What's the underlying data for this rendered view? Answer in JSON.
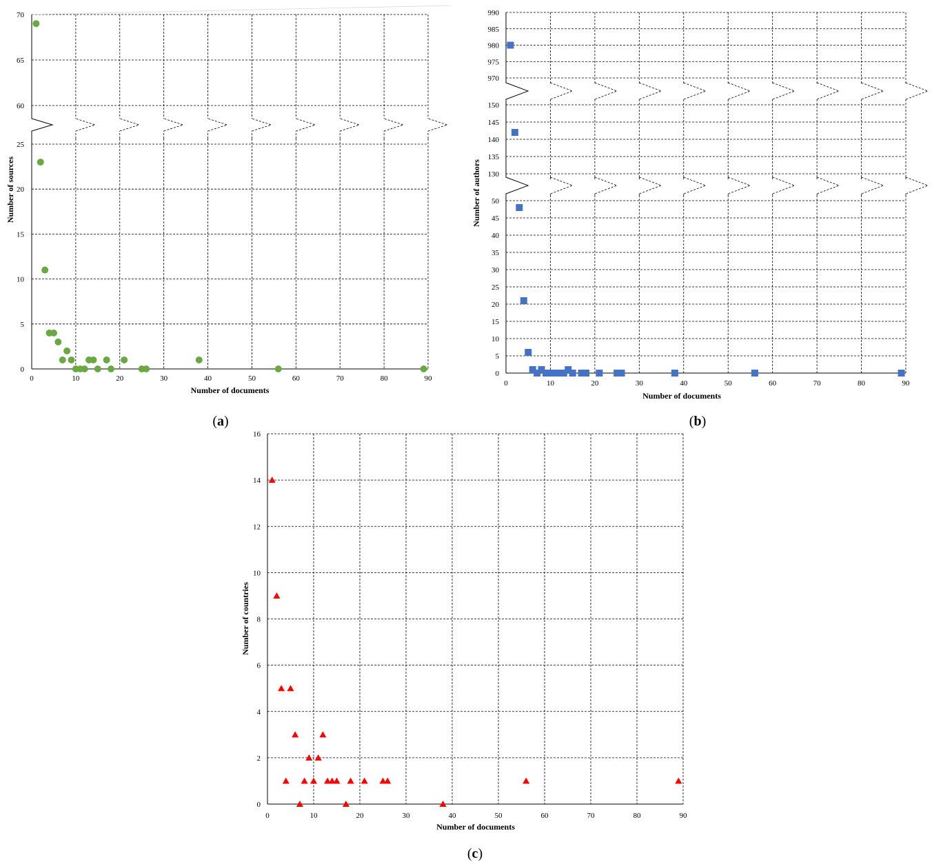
{
  "chart_data": [
    {
      "type": "scatter",
      "panel": "a",
      "xlabel": "Number of documents",
      "ylabel": "Number of sources",
      "color": "#6aa842",
      "marker": "circle",
      "xlim": [
        0,
        90
      ],
      "x_ticks": [
        "0",
        "10",
        "20",
        "30",
        "40",
        "50",
        "60",
        "70",
        "80",
        "90"
      ],
      "y_segments": [
        {
          "range": [
            0,
            25
          ],
          "ticks": [
            "0",
            "5",
            "10",
            "15",
            "20",
            "25"
          ]
        },
        {
          "range": [
            60,
            70
          ],
          "ticks": [
            "60",
            "65",
            "70"
          ]
        }
      ],
      "points": [
        {
          "x": 1,
          "y": 69
        },
        {
          "x": 2,
          "y": 23
        },
        {
          "x": 3,
          "y": 11
        },
        {
          "x": 4,
          "y": 4
        },
        {
          "x": 5,
          "y": 4
        },
        {
          "x": 6,
          "y": 3
        },
        {
          "x": 7,
          "y": 1
        },
        {
          "x": 8,
          "y": 2
        },
        {
          "x": 9,
          "y": 1
        },
        {
          "x": 10,
          "y": 0
        },
        {
          "x": 11,
          "y": 0
        },
        {
          "x": 12,
          "y": 0
        },
        {
          "x": 13,
          "y": 1
        },
        {
          "x": 14,
          "y": 1
        },
        {
          "x": 15,
          "y": 0
        },
        {
          "x": 17,
          "y": 1
        },
        {
          "x": 18,
          "y": 0
        },
        {
          "x": 21,
          "y": 1
        },
        {
          "x": 25,
          "y": 0
        },
        {
          "x": 26,
          "y": 0
        },
        {
          "x": 38,
          "y": 1
        },
        {
          "x": 56,
          "y": 0
        },
        {
          "x": 89,
          "y": 0
        }
      ],
      "caption": "a"
    },
    {
      "type": "scatter",
      "panel": "b",
      "xlabel": "Number of documents",
      "ylabel": "Number of authors",
      "color": "#4472c4",
      "marker": "square",
      "xlim": [
        0,
        90
      ],
      "x_ticks": [
        "0",
        "10",
        "20",
        "30",
        "40",
        "50",
        "60",
        "70",
        "80",
        "90"
      ],
      "y_segments": [
        {
          "range": [
            0,
            50
          ],
          "ticks": [
            "0",
            "5",
            "10",
            "15",
            "20",
            "25",
            "30",
            "35",
            "40",
            "45",
            "50"
          ]
        },
        {
          "range": [
            130,
            150
          ],
          "ticks": [
            "130",
            "135",
            "140",
            "145",
            "150"
          ]
        },
        {
          "range": [
            970,
            990
          ],
          "ticks": [
            "970",
            "975",
            "980",
            "985",
            "990"
          ]
        }
      ],
      "points": [
        {
          "x": 1,
          "y": 980
        },
        {
          "x": 2,
          "y": 142
        },
        {
          "x": 3,
          "y": 48
        },
        {
          "x": 4,
          "y": 21
        },
        {
          "x": 5,
          "y": 6
        },
        {
          "x": 6,
          "y": 1
        },
        {
          "x": 7,
          "y": 0
        },
        {
          "x": 8,
          "y": 1
        },
        {
          "x": 9,
          "y": 0
        },
        {
          "x": 10,
          "y": 0
        },
        {
          "x": 11,
          "y": 0
        },
        {
          "x": 12,
          "y": 0
        },
        {
          "x": 13,
          "y": 0
        },
        {
          "x": 14,
          "y": 1
        },
        {
          "x": 15,
          "y": 0
        },
        {
          "x": 17,
          "y": 0
        },
        {
          "x": 18,
          "y": 0
        },
        {
          "x": 21,
          "y": 0
        },
        {
          "x": 25,
          "y": 0
        },
        {
          "x": 26,
          "y": 0
        },
        {
          "x": 38,
          "y": 0
        },
        {
          "x": 56,
          "y": 0
        },
        {
          "x": 89,
          "y": 0
        }
      ],
      "caption": "b"
    },
    {
      "type": "scatter",
      "panel": "c",
      "xlabel": "Number of documents",
      "ylabel": "Number of countries",
      "color": "#ff0000",
      "marker": "triangle",
      "xlim": [
        0,
        90
      ],
      "ylim": [
        0,
        16
      ],
      "x_ticks": [
        "0",
        "10",
        "20",
        "30",
        "40",
        "50",
        "60",
        "70",
        "80",
        "90"
      ],
      "y_ticks": [
        "0",
        "2",
        "4",
        "6",
        "8",
        "10",
        "12",
        "14",
        "16"
      ],
      "points": [
        {
          "x": 1,
          "y": 14
        },
        {
          "x": 2,
          "y": 9
        },
        {
          "x": 3,
          "y": 5
        },
        {
          "x": 4,
          "y": 1
        },
        {
          "x": 5,
          "y": 5
        },
        {
          "x": 6,
          "y": 3
        },
        {
          "x": 7,
          "y": 0
        },
        {
          "x": 8,
          "y": 1
        },
        {
          "x": 9,
          "y": 2
        },
        {
          "x": 10,
          "y": 1
        },
        {
          "x": 11,
          "y": 2
        },
        {
          "x": 12,
          "y": 3
        },
        {
          "x": 13,
          "y": 1
        },
        {
          "x": 14,
          "y": 1
        },
        {
          "x": 15,
          "y": 1
        },
        {
          "x": 17,
          "y": 0
        },
        {
          "x": 18,
          "y": 1
        },
        {
          "x": 21,
          "y": 1
        },
        {
          "x": 25,
          "y": 1
        },
        {
          "x": 26,
          "y": 1
        },
        {
          "x": 38,
          "y": 0
        },
        {
          "x": 56,
          "y": 1
        },
        {
          "x": 89,
          "y": 1
        }
      ],
      "caption": "c"
    }
  ]
}
